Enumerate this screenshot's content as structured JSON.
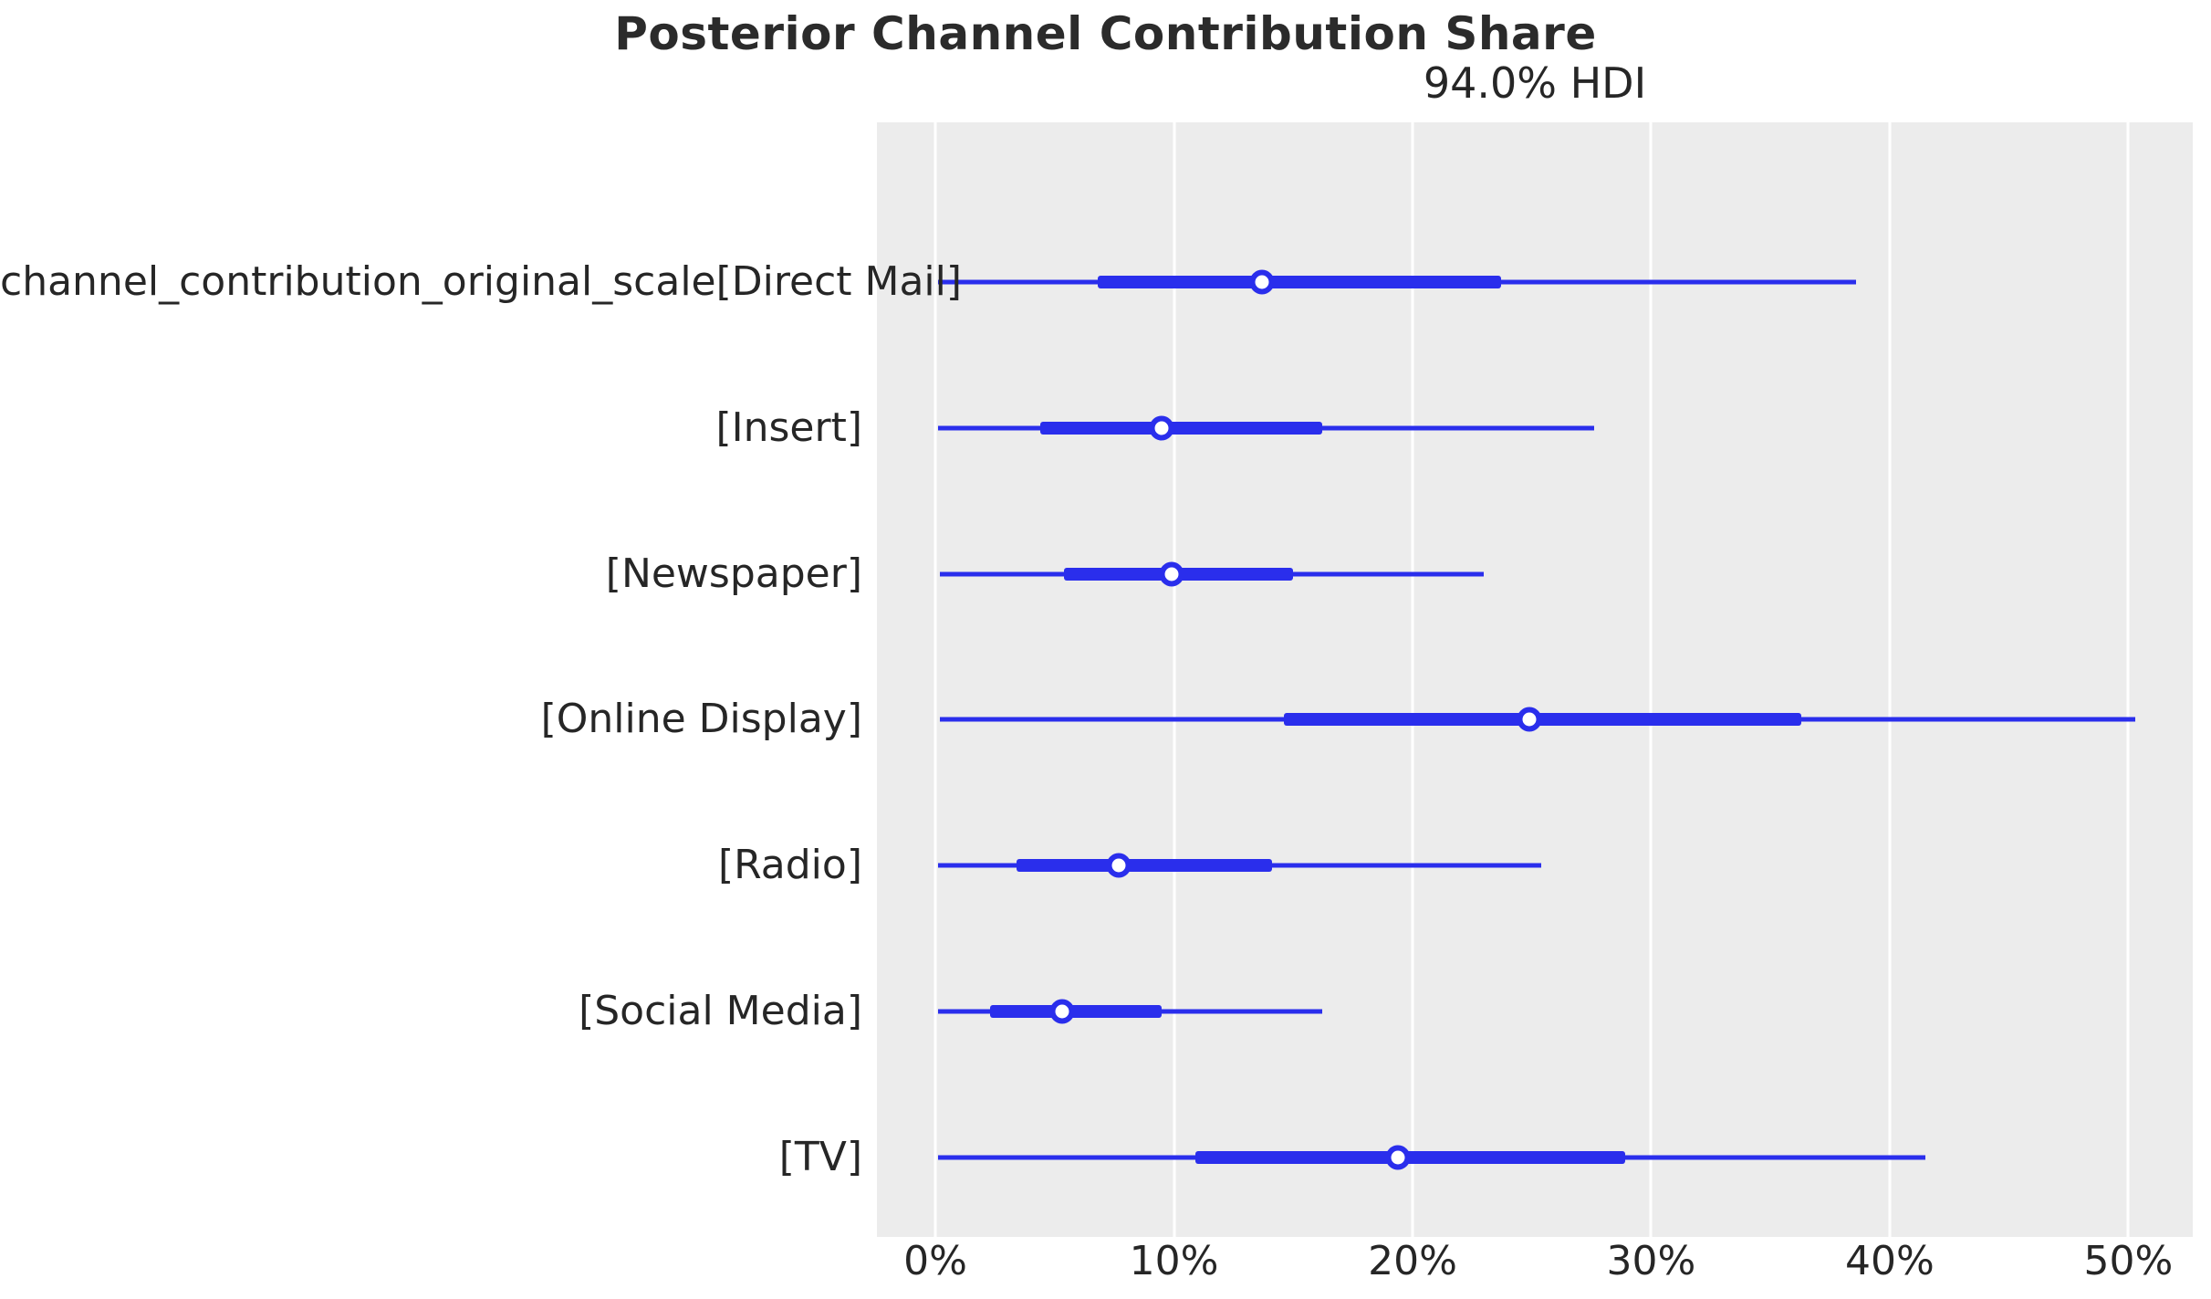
{
  "colors": {
    "interval_blue": "#2a2eec",
    "plot_background": "#ececec",
    "gridline": "#ffffff",
    "text": "#262626"
  },
  "chart_data": {
    "type": "forest",
    "title": "Posterior Channel Contribution Share",
    "subtitle": "94.0% HDI",
    "xlabel": "",
    "ylabel": "",
    "grid": "vertical-white-on-gray",
    "legend": "none",
    "xlim": [
      -2.45,
      52.7
    ],
    "x_tick_values": [
      0,
      10,
      20,
      30,
      40,
      50
    ],
    "x_tick_labels": [
      "0%",
      "10%",
      "20%",
      "30%",
      "40%",
      "50%"
    ],
    "units": "percent",
    "marker_style": "open-circle-median",
    "rows": [
      {
        "label": "channel_contribution_original_scale[Direct Mail]",
        "hdi_low": 0.1,
        "q25": 6.8,
        "median": 13.7,
        "q75": 23.7,
        "hdi_high": 38.6
      },
      {
        "label": "[Insert]",
        "hdi_low": 0.1,
        "q25": 4.4,
        "median": 9.5,
        "q75": 16.2,
        "hdi_high": 27.6
      },
      {
        "label": "[Newspaper]",
        "hdi_low": 0.2,
        "q25": 5.4,
        "median": 9.9,
        "q75": 15.0,
        "hdi_high": 23.0
      },
      {
        "label": "[Online Display]",
        "hdi_low": 0.2,
        "q25": 14.6,
        "median": 24.9,
        "q75": 36.3,
        "hdi_high": 50.3
      },
      {
        "label": "[Radio]",
        "hdi_low": 0.1,
        "q25": 3.4,
        "median": 7.7,
        "q75": 14.1,
        "hdi_high": 25.4
      },
      {
        "label": "[Social Media]",
        "hdi_low": 0.1,
        "q25": 2.3,
        "median": 5.3,
        "q75": 9.5,
        "hdi_high": 16.2
      },
      {
        "label": "[TV]",
        "hdi_low": 0.1,
        "q25": 10.9,
        "median": 19.4,
        "q75": 28.9,
        "hdi_high": 41.5
      }
    ]
  }
}
